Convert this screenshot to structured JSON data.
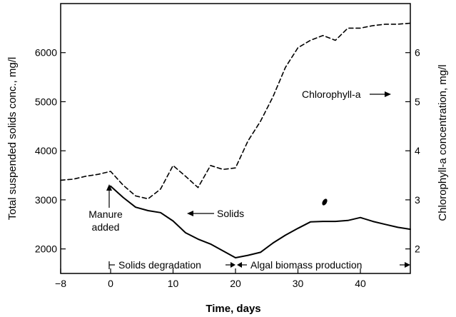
{
  "chart_data": {
    "type": "line",
    "title": "",
    "xlabel": "Time, days",
    "ylabel_left": "Total suspended solids conc., mg/l",
    "ylabel_right": "Chlorophyll-a concentration, mg/l",
    "xlim": [
      -8,
      48
    ],
    "ylim_left": [
      1500,
      7000
    ],
    "ylim_right": [
      1.5,
      7.0
    ],
    "x_ticks": [
      -8,
      0,
      10,
      20,
      30,
      40
    ],
    "y_ticks_left": [
      2000,
      3000,
      4000,
      5000,
      6000
    ],
    "y_ticks_right": [
      2,
      3,
      4,
      5,
      6
    ],
    "grid": false,
    "series": [
      {
        "name": "Solids",
        "axis": "left",
        "style": "solid",
        "x": [
          0,
          2,
          4,
          6,
          8,
          10,
          12,
          14,
          16,
          18,
          20,
          22,
          24,
          26,
          28,
          30,
          32,
          34,
          36,
          38,
          40,
          42,
          44,
          46,
          48
        ],
        "y": [
          3280,
          3050,
          2850,
          2780,
          2740,
          2570,
          2330,
          2200,
          2100,
          1960,
          1820,
          1870,
          1930,
          2120,
          2280,
          2420,
          2550,
          2560,
          2560,
          2580,
          2640,
          2560,
          2500,
          2440,
          2400
        ]
      },
      {
        "name": "Chlorophyll-a",
        "axis": "right",
        "style": "dashed",
        "x": [
          -8,
          -6,
          -4,
          -2,
          0,
          2,
          4,
          6,
          8,
          10,
          12,
          14,
          16,
          18,
          20,
          22,
          24,
          26,
          28,
          30,
          32,
          34,
          36,
          38,
          40,
          42,
          44,
          46,
          48
        ],
        "y": [
          3.4,
          3.42,
          3.48,
          3.52,
          3.58,
          3.3,
          3.08,
          3.02,
          3.22,
          3.7,
          3.48,
          3.25,
          3.7,
          3.62,
          3.65,
          4.2,
          4.6,
          5.1,
          5.7,
          6.1,
          6.25,
          6.35,
          6.25,
          6.5,
          6.5,
          6.55,
          6.58,
          6.58,
          6.6
        ]
      }
    ],
    "annotations": {
      "manure_added": [
        "Manure",
        "added"
      ],
      "solids": "Solids",
      "chlorophyll": "Chlorophyll-a",
      "solids_degradation": "Solids degradation",
      "algal_biomass_production": "Algal biomass production"
    }
  }
}
